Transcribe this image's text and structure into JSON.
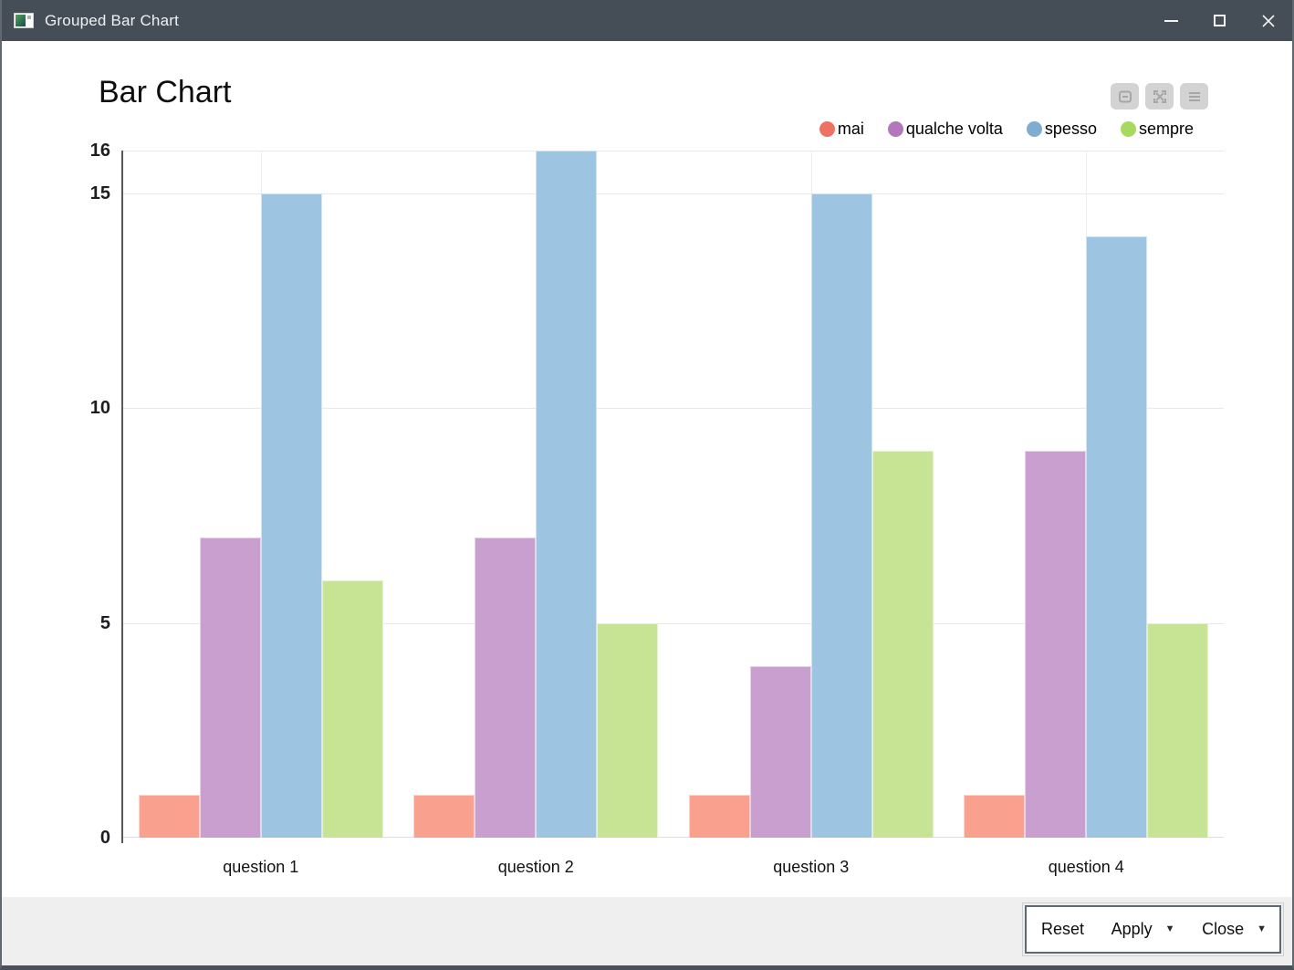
{
  "window": {
    "title": "Grouped Bar Chart",
    "control_icons": [
      "minimize-icon",
      "maximize-icon",
      "close-icon"
    ]
  },
  "chart": {
    "title": "Bar Chart",
    "toolbar_icons": [
      "box-minus-icon",
      "expand-arrows-icon",
      "menu-lines-icon"
    ]
  },
  "chart_data": {
    "type": "bar",
    "title": "Bar Chart",
    "categories": [
      "question 1",
      "question 2",
      "question 3",
      "question 4"
    ],
    "series": [
      {
        "name": "mai",
        "values": [
          1,
          1,
          1,
          1
        ],
        "bar_color": "#f9a08f",
        "legend_color": "#ee7264"
      },
      {
        "name": "qualche volta",
        "values": [
          7,
          7,
          4,
          9
        ],
        "bar_color": "#c99fd0",
        "legend_color": "#b377bb"
      },
      {
        "name": "spesso",
        "values": [
          15,
          16,
          15,
          14
        ],
        "bar_color": "#9dc4e0",
        "legend_color": "#7fadd2"
      },
      {
        "name": "sempre",
        "values": [
          6,
          5,
          9,
          5
        ],
        "bar_color": "#c6e493",
        "legend_color": "#a7d95e"
      }
    ],
    "ylim": [
      0,
      16
    ],
    "yticks": [
      0,
      5,
      10,
      15,
      16
    ],
    "grid": true,
    "legend_position": "top-right",
    "xlabel": "",
    "ylabel": ""
  },
  "footer": {
    "reset_label": "Reset",
    "apply_label": "Apply",
    "close_label": "Close",
    "dropdown_icon": "▼"
  }
}
